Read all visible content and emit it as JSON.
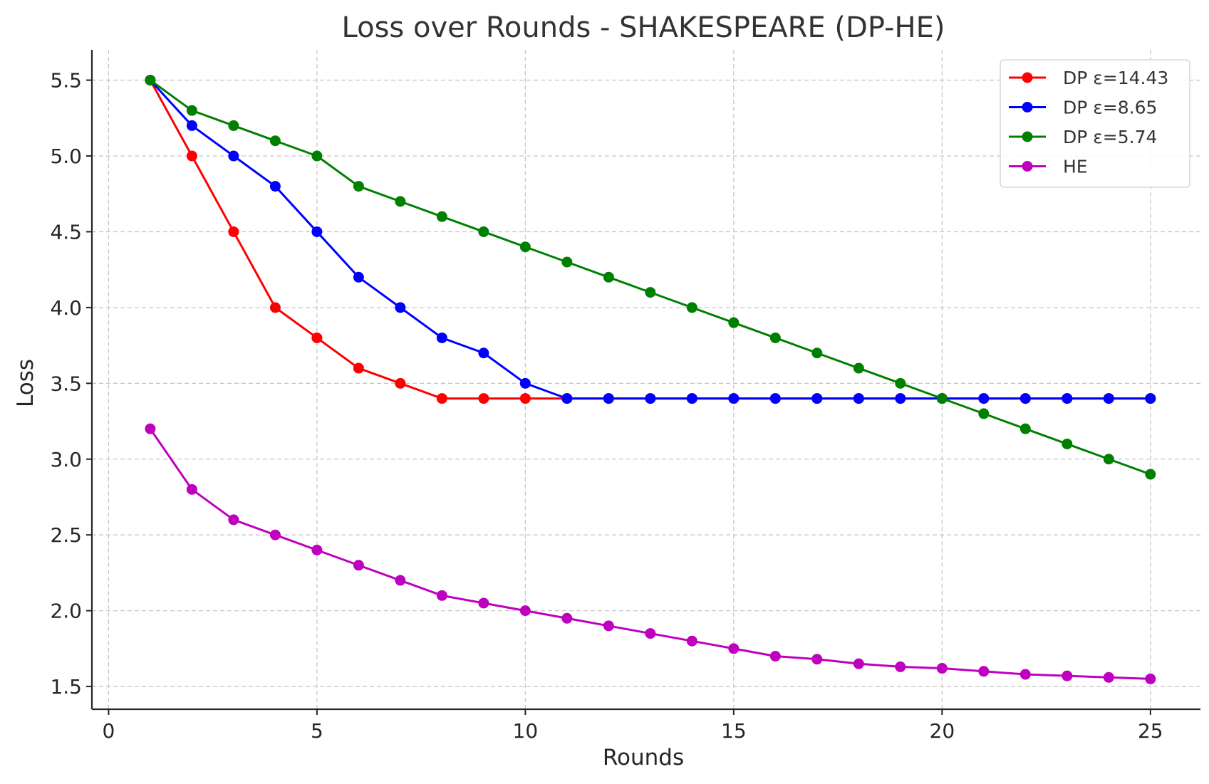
{
  "chart_data": {
    "type": "line",
    "title": "Loss over Rounds - SHAKESPEARE (DP-HE)",
    "xlabel": "Rounds",
    "ylabel": "Loss",
    "xlim": [
      -0.4,
      26.2
    ],
    "ylim": [
      1.35,
      5.7
    ],
    "xticks": [
      0,
      5,
      10,
      15,
      20,
      25
    ],
    "yticks": [
      1.5,
      2.0,
      2.5,
      3.0,
      3.5,
      4.0,
      4.5,
      5.0,
      5.5
    ],
    "xtick_labels": [
      "0",
      "5",
      "10",
      "15",
      "20",
      "25"
    ],
    "ytick_labels": [
      "1.5",
      "2.0",
      "2.5",
      "3.0",
      "3.5",
      "4.0",
      "4.5",
      "5.0",
      "5.5"
    ],
    "grid": true,
    "legend_position": "top-right",
    "x": [
      1,
      2,
      3,
      4,
      5,
      6,
      7,
      8,
      9,
      10,
      11,
      12,
      13,
      14,
      15,
      16,
      17,
      18,
      19,
      20,
      21,
      22,
      23,
      24,
      25
    ],
    "series": [
      {
        "name": "DP ε=14.43",
        "color": "#ff0000",
        "values": [
          5.5,
          5.0,
          4.5,
          4.0,
          3.8,
          3.6,
          3.5,
          3.4,
          3.4,
          3.4,
          3.4,
          3.4,
          3.4,
          3.4,
          3.4,
          3.4,
          3.4,
          3.4,
          3.4,
          3.4,
          3.4,
          3.4,
          3.4,
          3.4,
          3.4
        ]
      },
      {
        "name": "DP ε=8.65",
        "color": "#0000ff",
        "values": [
          5.5,
          5.2,
          5.0,
          4.8,
          4.5,
          4.2,
          4.0,
          3.8,
          3.7,
          3.5,
          3.4,
          3.4,
          3.4,
          3.4,
          3.4,
          3.4,
          3.4,
          3.4,
          3.4,
          3.4,
          3.4,
          3.4,
          3.4,
          3.4,
          3.4
        ]
      },
      {
        "name": "DP ε=5.74",
        "color": "#008000",
        "values": [
          5.5,
          5.3,
          5.2,
          5.1,
          5.0,
          4.8,
          4.7,
          4.6,
          4.5,
          4.4,
          4.3,
          4.2,
          4.1,
          4.0,
          3.9,
          3.8,
          3.7,
          3.6,
          3.5,
          3.4,
          3.3,
          3.2,
          3.1,
          3.0,
          2.9
        ]
      },
      {
        "name": "HE",
        "color": "#bf00bf",
        "values": [
          3.2,
          2.8,
          2.6,
          2.5,
          2.4,
          2.3,
          2.2,
          2.1,
          2.05,
          2.0,
          1.95,
          1.9,
          1.85,
          1.8,
          1.75,
          1.7,
          1.68,
          1.65,
          1.63,
          1.62,
          1.6,
          1.58,
          1.57,
          1.56,
          1.55
        ]
      }
    ]
  }
}
